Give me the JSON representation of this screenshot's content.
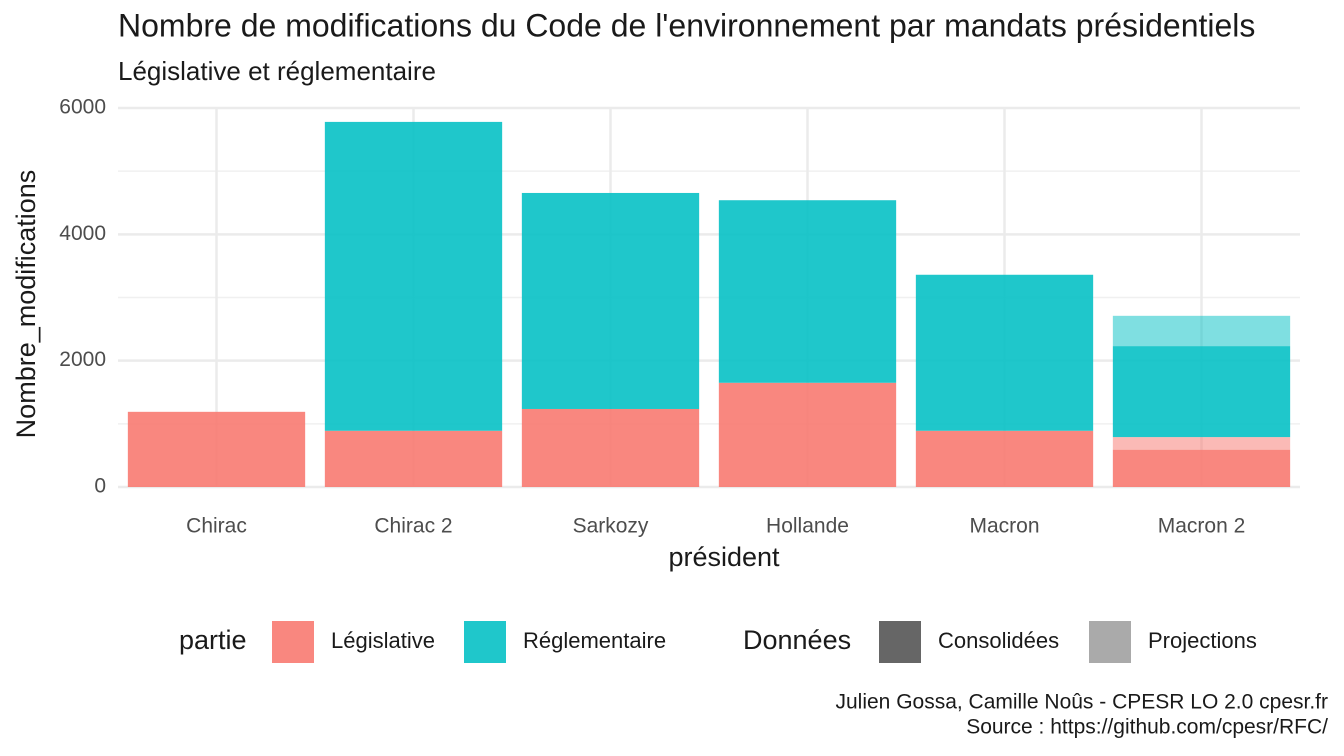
{
  "chart_data": {
    "type": "stacked_bar",
    "title": "Nombre de modifications du Code de l'environnement par mandats présidentiels",
    "subtitle": "Législative et réglementaire",
    "x_label": "président",
    "y_label": "Nombre_modifications",
    "categories": [
      "Chirac",
      "Chirac 2",
      "Sarkozy",
      "Hollande",
      "Macron",
      "Macron 2"
    ],
    "series": [
      {
        "name": "Législative",
        "color": "#F8766D",
        "values": [
          1190,
          890,
          1235,
          1650,
          890,
          590
        ],
        "projections": [
          null,
          null,
          null,
          null,
          null,
          200
        ]
      },
      {
        "name": "Réglementaire",
        "color": "#00BFC4",
        "values": [
          0,
          4890,
          3420,
          2890,
          2470,
          1440
        ],
        "projections": [
          null,
          null,
          null,
          null,
          null,
          480
        ]
      }
    ],
    "legend_title": "partie",
    "alpha_legend": {
      "title": "Données",
      "items": [
        {
          "name": "Consolidées",
          "color": "#666666",
          "alpha": 0.88
        },
        {
          "name": "Projections",
          "color": "#aaaaaa",
          "alpha": 0.5
        }
      ]
    },
    "ylim": [
      0,
      6000
    ],
    "yticks": [
      0,
      2000,
      4000,
      6000
    ],
    "y_minor_grid": [
      1000,
      3000,
      5000
    ],
    "grid": true,
    "legend_position": "bottom",
    "caption": [
      "Julien Gossa, Camille Noûs - CPESR LO 2.0 cpesr.fr",
      "Source : https://github.com/cpesr/RFC/"
    ]
  }
}
